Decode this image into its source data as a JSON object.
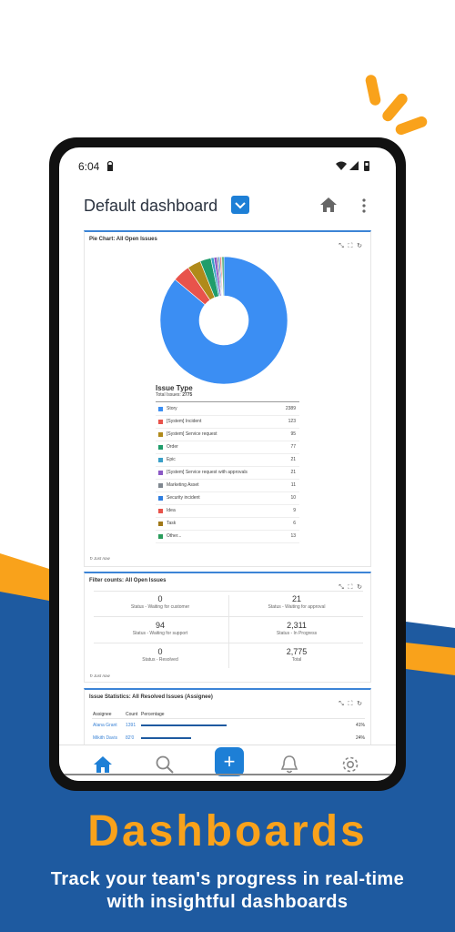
{
  "promo": {
    "headline": "Dashboards",
    "tagline_line1": "Track your team's progress in real-time",
    "tagline_line2": "with insightful dashboards",
    "colors": {
      "blue": "#1e5aa0",
      "orange": "#f9a21b",
      "accent": "#1d7fd6"
    }
  },
  "statusbar": {
    "time": "6:04"
  },
  "appbar": {
    "title": "Default dashboard"
  },
  "pie_card": {
    "title": "Pie Chart: All Open Issues",
    "legend_title": "Issue Type",
    "total_label": "Total Issues:",
    "total_value": "2775",
    "footer": "Just now"
  },
  "chart_data": {
    "type": "pie",
    "title": "Issue Type",
    "categories": [
      "Story",
      "[System] Incident",
      "[System] Service request",
      "Order",
      "Epic",
      "[System] Service request with approvals",
      "Marketing Asset",
      "Security incident",
      "Idea",
      "Task",
      "Other..."
    ],
    "values": [
      2389,
      123,
      95,
      77,
      21,
      21,
      11,
      10,
      9,
      6,
      13
    ],
    "colors": [
      "#3b8ef3",
      "#e8534b",
      "#b08a1a",
      "#1f9d6b",
      "#3aa0c8",
      "#8b58c5",
      "#7f8790",
      "#2f7ee0",
      "#e8534b",
      "#a07818",
      "#2a9d5c"
    ]
  },
  "filter_card": {
    "title": "Filter counts: All Open Issues",
    "stats": [
      {
        "value": "0",
        "label": "Status - Waiting for customer"
      },
      {
        "value": "21",
        "label": "Status - Waiting for approval"
      },
      {
        "value": "94",
        "label": "Status - Waiting for support"
      },
      {
        "value": "2,311",
        "label": "Status - In Progress"
      },
      {
        "value": "0",
        "label": "Status - Resolved"
      },
      {
        "value": "2,775",
        "label": "Total"
      }
    ],
    "footer": "Just now"
  },
  "issue_card": {
    "title": "Issue Statistics: All Resolved Issues (Assignee)",
    "headers": [
      "Assignee",
      "Count",
      "Percentage"
    ],
    "rows": [
      {
        "assignee": "Alana Grant",
        "count": "1391",
        "percent": "41%",
        "fraction": 0.41
      },
      {
        "assignee": "Mikith Davis",
        "count": "82'0",
        "percent": "24%",
        "fraction": 0.24
      }
    ]
  }
}
